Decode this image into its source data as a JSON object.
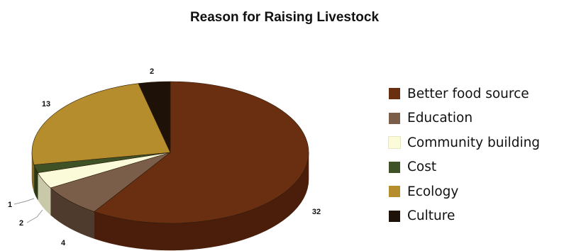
{
  "chart_data": {
    "type": "pie",
    "title": "Reason for Raising Livestock",
    "legend_position": "right",
    "series": [
      {
        "name": "Better food source",
        "value": 32,
        "color": "#6a2e10",
        "side_color": "#4a1e0a"
      },
      {
        "name": "Education",
        "value": 4,
        "color": "#7a5e49",
        "side_color": "#4e3b2d"
      },
      {
        "name": "Community building",
        "value": 2,
        "color": "#fbfad9",
        "side_color": "#c9c8a9"
      },
      {
        "name": "Cost",
        "value": 1,
        "color": "#3f5226",
        "side_color": "#2a3818"
      },
      {
        "name": "Ecology",
        "value": 13,
        "color": "#b68d2c",
        "side_color": "#86661c"
      },
      {
        "name": "Culture",
        "value": 2,
        "color": "#1e1107",
        "side_color": "#0e0804"
      }
    ]
  }
}
